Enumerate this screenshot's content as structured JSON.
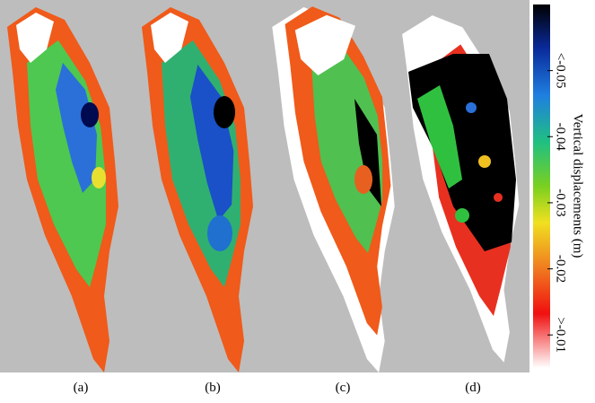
{
  "panels": [
    {
      "label": "(a)"
    },
    {
      "label": "(b)"
    },
    {
      "label": "(c)"
    },
    {
      "label": "(d)"
    }
  ],
  "colorbar": {
    "label": "Vertical displacements (m)",
    "clim": [
      -0.06,
      -0.005
    ],
    "ticks": [
      {
        "value": -0.05,
        "label": "<-0.05"
      },
      -0.04,
      -0.03,
      -0.02,
      {
        "value": -0.01,
        "label": ">-0.01"
      }
    ]
  }
}
